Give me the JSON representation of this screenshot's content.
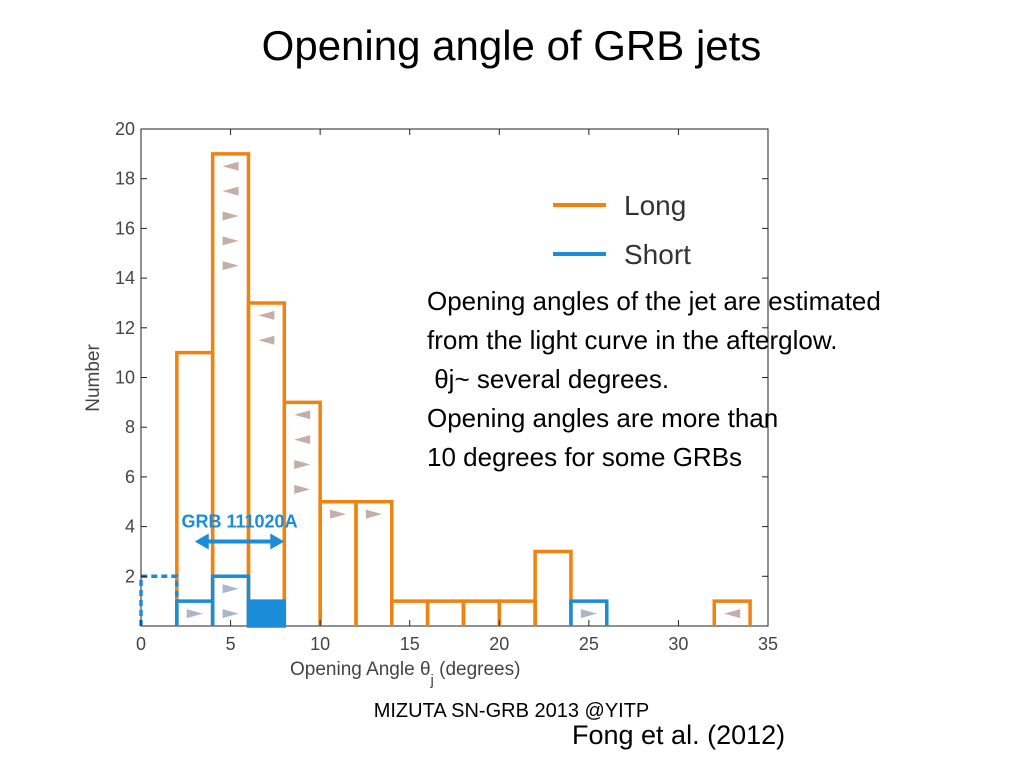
{
  "slide": {
    "title": "Opening angle of GRB jets",
    "footer": "MIZUTA SN-GRB 2013 @YITP",
    "citation": "Fong et al. (2012)",
    "notes": [
      "Opening angles of the jet are estimated",
      "from the light curve in the afterglow.",
      " θj~ several degrees.",
      "Opening angles are more than",
      "10 degrees for some GRBs"
    ]
  },
  "colors": {
    "long": "#f0820f",
    "short": "#1a8cd8",
    "arrow_long": "#c4aea6",
    "arrow_short": "#a8b8c8"
  },
  "chart_data": {
    "type": "bar",
    "xlabel": "Opening Angle θ",
    "xlabel_sub": "j",
    "xlabel_suffix": " (degrees)",
    "ylabel": "Number",
    "xlim": [
      0,
      35
    ],
    "ylim": [
      0,
      20
    ],
    "xticks": [
      0,
      5,
      10,
      15,
      20,
      25,
      30,
      35
    ],
    "yticks": [
      2,
      4,
      6,
      8,
      10,
      12,
      14,
      16,
      18,
      20
    ],
    "bin_width": 2,
    "legend": {
      "placement": "top-right",
      "entries": [
        "Long",
        "Short"
      ]
    },
    "series": [
      {
        "name": "Long",
        "bins": [
          {
            "x0": 2,
            "value": 11,
            "arrows": []
          },
          {
            "x0": 4,
            "value": 19,
            "arrows": [
              "left",
              "left",
              "right",
              "right",
              "right"
            ]
          },
          {
            "x0": 6,
            "value": 13,
            "arrows": [
              "left",
              "left"
            ]
          },
          {
            "x0": 8,
            "value": 9,
            "arrows": [
              "left",
              "left",
              "right",
              "right"
            ]
          },
          {
            "x0": 10,
            "value": 5,
            "arrows": [
              "right"
            ]
          },
          {
            "x0": 12,
            "value": 5,
            "arrows": [
              "right"
            ]
          },
          {
            "x0": 14,
            "value": 1,
            "arrows": []
          },
          {
            "x0": 16,
            "value": 1,
            "arrows": []
          },
          {
            "x0": 18,
            "value": 1,
            "arrows": []
          },
          {
            "x0": 20,
            "value": 1,
            "arrows": []
          },
          {
            "x0": 22,
            "value": 3,
            "arrows": []
          },
          {
            "x0": 32,
            "value": 1,
            "arrows": [
              "left"
            ]
          }
        ]
      },
      {
        "name": "Short",
        "bins": [
          {
            "x0": 0,
            "value": 2,
            "style": "dashed",
            "arrows": []
          },
          {
            "x0": 2,
            "value": 1,
            "arrows": [
              "right"
            ]
          },
          {
            "x0": 4,
            "value": 2,
            "arrows": [
              "right",
              "right"
            ]
          },
          {
            "x0": 6,
            "value": 1,
            "style": "filled",
            "arrows": []
          },
          {
            "x0": 24,
            "value": 1,
            "arrows": [
              "right"
            ]
          }
        ]
      }
    ],
    "annotation": {
      "label": "GRB 111020A",
      "x_range": [
        3,
        8
      ],
      "y": 3.4
    }
  }
}
